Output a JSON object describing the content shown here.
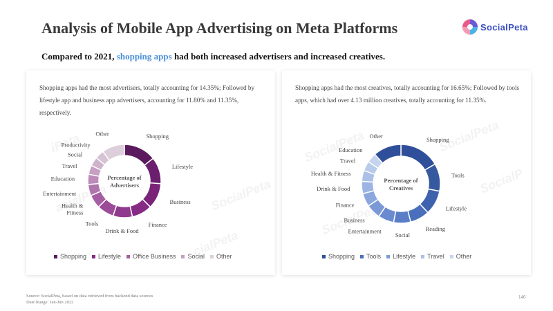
{
  "header": {
    "title": "Analysis of Mobile App Advertising on Meta Platforms",
    "logo_text": "SocialPeta",
    "subtitle_prefix": "Compared to 2021, ",
    "subtitle_highlight": "shopping apps",
    "subtitle_suffix": " had both increased advertisers and increased creatives."
  },
  "colors": {
    "accent": "#4a90d9",
    "left_palette": [
      "#5b1a5e",
      "#6c1f6e",
      "#7a2379",
      "#862b85",
      "#8f3a8e",
      "#9b4b98",
      "#a65ea2",
      "#b175ad",
      "#bc8bb8",
      "#c5a0c2",
      "#cfb3cc",
      "#d6c3d4",
      "#dccfdb"
    ],
    "right_palette": [
      "#2f4f9a",
      "#35589f",
      "#3d62ae",
      "#4a6fbc",
      "#5a7dc7",
      "#6a8bd0",
      "#7b99d6",
      "#8ba7dd",
      "#9bb4e3",
      "#aac0e7",
      "#b8cbea",
      "#c6d5ef"
    ]
  },
  "chart_data": [
    {
      "type": "pie",
      "donut": true,
      "description": "Shopping apps had the most advertisers, totally accounting for 14.35%; Followed by lifestyle app and business app advertisers, accounting for 11.80% and 11.35%, respectively.",
      "center_label": [
        "Percentage of",
        "Advertisers"
      ],
      "categories": [
        "Shopping",
        "Lifestyle",
        "Business",
        "Finance",
        "Drink & Food",
        "Tools",
        "Health & Fitness",
        "Entertainment",
        "Education",
        "Travel",
        "Social",
        "Productivity",
        "Other"
      ],
      "label_lines": [
        [
          "Shopping"
        ],
        [
          "Lifestyle"
        ],
        [
          "Business"
        ],
        [
          "Finance"
        ],
        [
          "Drink & Food"
        ],
        [
          "Tools"
        ],
        [
          "Health &",
          "Fitness"
        ],
        [
          "Entertainment"
        ],
        [
          "Education"
        ],
        [
          "Travel"
        ],
        [
          "Social"
        ],
        [
          "Productivity"
        ],
        [
          "Other"
        ]
      ],
      "values": [
        14.35,
        11.8,
        11.35,
        9.0,
        8.5,
        7.5,
        6.0,
        5.0,
        4.5,
        4.0,
        4.0,
        4.0,
        10.0
      ],
      "legend": [
        "Shopping",
        "Lifestyle",
        "Office Business",
        "Social",
        "Other"
      ]
    },
    {
      "type": "pie",
      "donut": true,
      "description": "Shopping apps had the most creatives, totally accounting for 16.65%; Followed by tools apps, which had over 4.13 million creatives, totally accounting for 11.35%.",
      "center_label": [
        "Percentage of",
        "Creatives"
      ],
      "categories": [
        "Shopping",
        "Tools",
        "Lifestyle",
        "Reading",
        "Social",
        "Entertainment",
        "Business",
        "Finance",
        "Drink & Food",
        "Health & Fitness",
        "Travel",
        "Education",
        "Other"
      ],
      "label_lines": [
        [
          "Shopping"
        ],
        [
          "Tools"
        ],
        [
          "Lifestyle"
        ],
        [
          "Reading"
        ],
        [
          "Social"
        ],
        [
          "Entertainment"
        ],
        [
          "Business"
        ],
        [
          "Finance"
        ],
        [
          "Drink & Food"
        ],
        [
          "Health & Fitness"
        ],
        [
          "Travel"
        ],
        [
          "Education"
        ],
        [
          "Other"
        ]
      ],
      "values": [
        16.65,
        11.35,
        10.0,
        8.0,
        7.0,
        6.5,
        6.0,
        5.5,
        5.0,
        4.5,
        4.0,
        4.0,
        11.5
      ],
      "legend": [
        "Shopping",
        "Tools",
        "Lifestyle",
        "Travel",
        "Other"
      ]
    }
  ],
  "footer": {
    "source": "Source: SocialPeta, based on data retrieved from backend data sources",
    "date_range": "Date Range: Jan-Jun 2022",
    "page_number": "146"
  }
}
